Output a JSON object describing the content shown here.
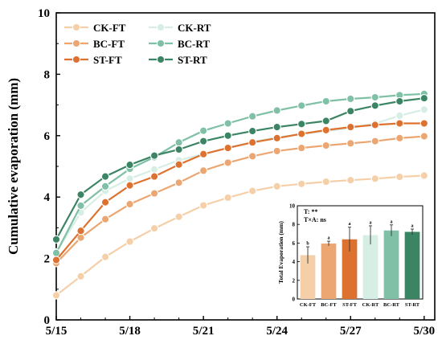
{
  "chart_data": {
    "type": "line",
    "title": "",
    "xlabel": "",
    "ylabel": "Cumulative evaporation (mm)",
    "ylim": [
      0,
      10
    ],
    "yticks": [
      0,
      2,
      4,
      6,
      8,
      10
    ],
    "xticks": [
      "5/15",
      "5/18",
      "5/21",
      "5/24",
      "5/27",
      "5/30"
    ],
    "x": [
      "5/15",
      "5/16",
      "5/17",
      "5/18",
      "5/19",
      "5/20",
      "5/21",
      "5/22",
      "5/23",
      "5/24",
      "5/25",
      "5/26",
      "5/27",
      "5/28",
      "5/29",
      "5/30"
    ],
    "grid": false,
    "legend_position": "top-left",
    "series": [
      {
        "name": "CK-FT",
        "color": "#f5cfa8",
        "values": [
          0.8,
          1.42,
          2.05,
          2.55,
          2.98,
          3.36,
          3.73,
          3.98,
          4.2,
          4.35,
          4.43,
          4.5,
          4.55,
          4.6,
          4.66,
          4.7
        ]
      },
      {
        "name": "CK-RT",
        "color": "#d6eee4",
        "values": [
          2.2,
          3.5,
          4.2,
          4.6,
          4.9,
          5.2,
          5.4,
          5.6,
          5.8,
          5.95,
          6.05,
          6.15,
          6.25,
          6.4,
          6.65,
          6.85
        ]
      },
      {
        "name": "BC-FT",
        "color": "#eba672",
        "values": [
          1.85,
          2.68,
          3.28,
          3.77,
          4.12,
          4.47,
          4.86,
          5.12,
          5.33,
          5.5,
          5.6,
          5.68,
          5.75,
          5.82,
          5.92,
          5.98
        ]
      },
      {
        "name": "BC-RT",
        "color": "#7fc0a6",
        "values": [
          2.18,
          3.72,
          4.35,
          4.92,
          5.3,
          5.78,
          6.16,
          6.4,
          6.63,
          6.82,
          6.98,
          7.12,
          7.2,
          7.25,
          7.32,
          7.36
        ]
      },
      {
        "name": "ST-FT",
        "color": "#dd7230",
        "values": [
          1.95,
          2.9,
          3.83,
          4.38,
          4.67,
          5.06,
          5.4,
          5.6,
          5.78,
          5.92,
          6.06,
          6.18,
          6.28,
          6.35,
          6.4,
          6.4
        ]
      },
      {
        "name": "ST-RT",
        "color": "#3c8564",
        "values": [
          2.62,
          4.08,
          4.67,
          5.05,
          5.35,
          5.55,
          5.82,
          6.0,
          6.15,
          6.28,
          6.38,
          6.48,
          6.8,
          6.98,
          7.12,
          7.22
        ]
      }
    ],
    "inset": {
      "type": "bar",
      "ylabel": "Total Evaporation (mm)",
      "ylim": [
        0,
        10
      ],
      "yticks": [
        0,
        2,
        4,
        6,
        8,
        10
      ],
      "categories": [
        "CK-FT",
        "BC-FT",
        "ST-FT",
        "CK-RT",
        "BC-RT",
        "ST-RT"
      ],
      "values": [
        4.7,
        5.95,
        6.4,
        6.85,
        7.35,
        7.2
      ],
      "errors": [
        0.9,
        0.25,
        1.3,
        1.0,
        0.6,
        0.3
      ],
      "significance": [
        "b",
        "a",
        "a",
        "a",
        "a",
        "a"
      ],
      "colors": [
        "#f5cfa8",
        "#eba672",
        "#dd7230",
        "#d6eee4",
        "#7fc0a6",
        "#3c8564"
      ],
      "annotations": [
        "T: **",
        "T×A: ns"
      ]
    }
  }
}
